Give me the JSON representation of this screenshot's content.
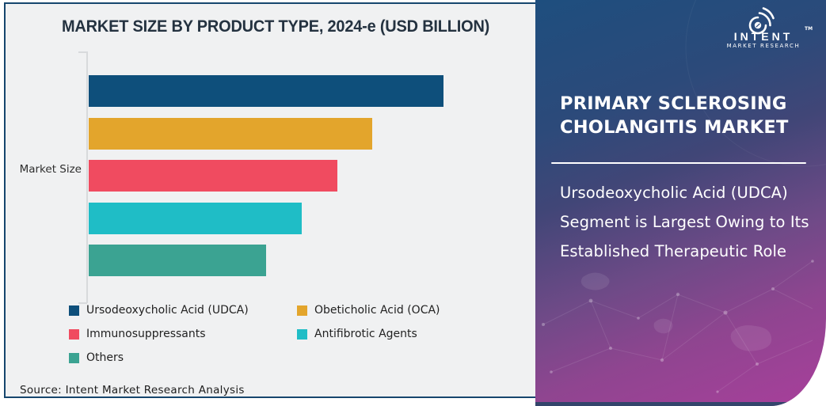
{
  "card": {
    "bg": "#F0F1F2",
    "border_color": "#16466E",
    "source_note": "Source: Intent Market Research Analysis"
  },
  "chart_data": {
    "type": "bar",
    "orientation": "horizontal",
    "title": "MARKET SIZE BY PRODUCT TYPE, 2024-e (USD BILLION)",
    "value_axis_label": "Market Size",
    "categories": [
      "Ursodeoxycholic Acid (UDCA)",
      "Obeticholic Acid (OCA)",
      "Immunosuppressants",
      "Antifibrotic Agents",
      "Others"
    ],
    "values_relative_to_largest": [
      1.0,
      0.8,
      0.7,
      0.6,
      0.5
    ],
    "value_labels_shown": false,
    "gridlines": false,
    "legend_position": "bottom",
    "colors": [
      "#0E4F7B",
      "#E3A52C",
      "#F04B60",
      "#1FBDC6",
      "#3BA392"
    ]
  },
  "panel": {
    "heading": "PRIMARY SCLEROSING CHOLANGITIS MARKET",
    "body": "Ursodeoxycholic Acid (UDCA) Segment is Largest Owing to Its Established Therapeutic Role",
    "gradient_top": "#1E4E7E",
    "gradient_bottom": "#A83F9B",
    "bottom_strip_color": "#33456B",
    "logo": {
      "name": "INTENT",
      "tm": "TM",
      "sub": "MARKET RESEARCH",
      "icon": "radar-arcs-icon"
    }
  }
}
